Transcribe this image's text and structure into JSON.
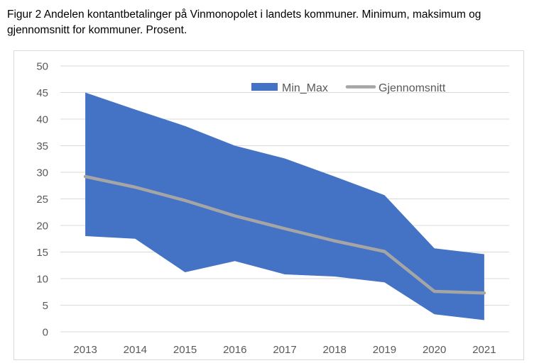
{
  "caption": "Figur 2 Andelen kontantbetalinger på Vinmonopolet i landets kommuner. Minimum, maksimum og gjennomsnitt for kommuner. Prosent.",
  "colors": {
    "area": "#4472C4",
    "line": "#A5A5A5",
    "grid": "#D9D9D9",
    "tick": "#595959"
  },
  "chart_data": {
    "type": "area",
    "title": "",
    "xlabel": "",
    "ylabel": "",
    "categories": [
      "2013",
      "2014",
      "2015",
      "2016",
      "2017",
      "2018",
      "2019",
      "2020",
      "2021"
    ],
    "ylim": [
      0,
      50
    ],
    "yticks": [
      0,
      5,
      10,
      15,
      20,
      25,
      30,
      35,
      40,
      45,
      50
    ],
    "grid": true,
    "legend_position": "top-right",
    "series": [
      {
        "name": "Min_Max",
        "kind": "range-area",
        "min": [
          18,
          17.5,
          11.2,
          13.3,
          10.8,
          10.4,
          9.3,
          3.3,
          2.2
        ],
        "max": [
          45,
          41.8,
          38.7,
          35,
          32.6,
          29.2,
          25.7,
          15.7,
          14.6
        ]
      },
      {
        "name": "Gjennomsnitt",
        "kind": "line",
        "values": [
          29.2,
          27.2,
          24.7,
          21.8,
          19.4,
          17.1,
          15.1,
          7.6,
          7.3
        ]
      }
    ]
  }
}
